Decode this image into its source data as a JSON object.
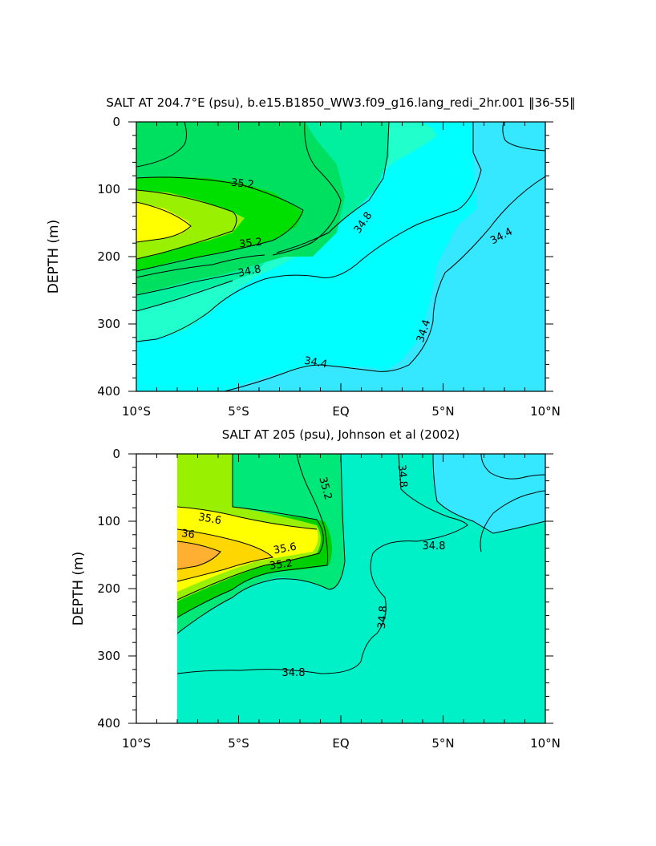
{
  "chart_data": [
    {
      "type": "contour",
      "title": "SALT AT 204.7°E (psu), b.e15.B1850_WW3.f09_g16.lang_redi_2hr.001 ‖36-55‖",
      "ylabel": "DEPTH (m)",
      "xlabel": "",
      "x_ticks": [
        "10°S",
        "5°S",
        "EQ",
        "5°N",
        "10°N"
      ],
      "y_ticks": [
        "0",
        "100",
        "200",
        "300",
        "400"
      ],
      "xlim": [
        -10,
        10
      ],
      "ylim": [
        0,
        400
      ],
      "y_inverted": true,
      "contour_levels": [
        34.4,
        34.6,
        34.8,
        35.0,
        35.2,
        35.4,
        35.6,
        35.8
      ],
      "contour_labels": [
        "35.2",
        "35.2",
        "34.8",
        "34.8",
        "34.4",
        "34.4",
        "34.4"
      ],
      "fill_colors": [
        "#35e8ff",
        "#00ffff",
        "#20ffcc",
        "#00f0a0",
        "#00e060",
        "#00e000",
        "#99f000",
        "#ffff00"
      ],
      "max_region": {
        "value": ">35.8",
        "lat_range": [
          -10,
          -7.5
        ],
        "depth_range": [
          120,
          190
        ]
      }
    },
    {
      "type": "contour",
      "title": "SALT AT 205 (psu), Johnson et al (2002)",
      "ylabel": "DEPTH (m)",
      "xlabel": "",
      "x_ticks": [
        "10°S",
        "5°S",
        "EQ",
        "5°N",
        "10°N"
      ],
      "y_ticks": [
        "0",
        "100",
        "200",
        "300",
        "400"
      ],
      "xlim": [
        -10,
        10
      ],
      "ylim": [
        0,
        400
      ],
      "y_inverted": true,
      "data_lat_range": [
        -8,
        10
      ],
      "contour_levels": [
        34.6,
        34.8,
        35.0,
        35.2,
        35.4,
        35.6,
        35.8,
        36.0
      ],
      "contour_labels": [
        "35.2",
        "35.6",
        "36",
        "35.6",
        "35.2",
        "34.8",
        "34.8",
        "34.8",
        "34.8"
      ],
      "fill_colors": [
        "#35e8ff",
        "#00f0c8",
        "#00e878",
        "#00d000",
        "#99f000",
        "#ffff00",
        "#ffd700",
        "#ffb030"
      ],
      "max_region": {
        "value": ">36",
        "lat_range": [
          -8,
          -5.8
        ],
        "depth_range": [
          125,
          170
        ]
      }
    }
  ]
}
